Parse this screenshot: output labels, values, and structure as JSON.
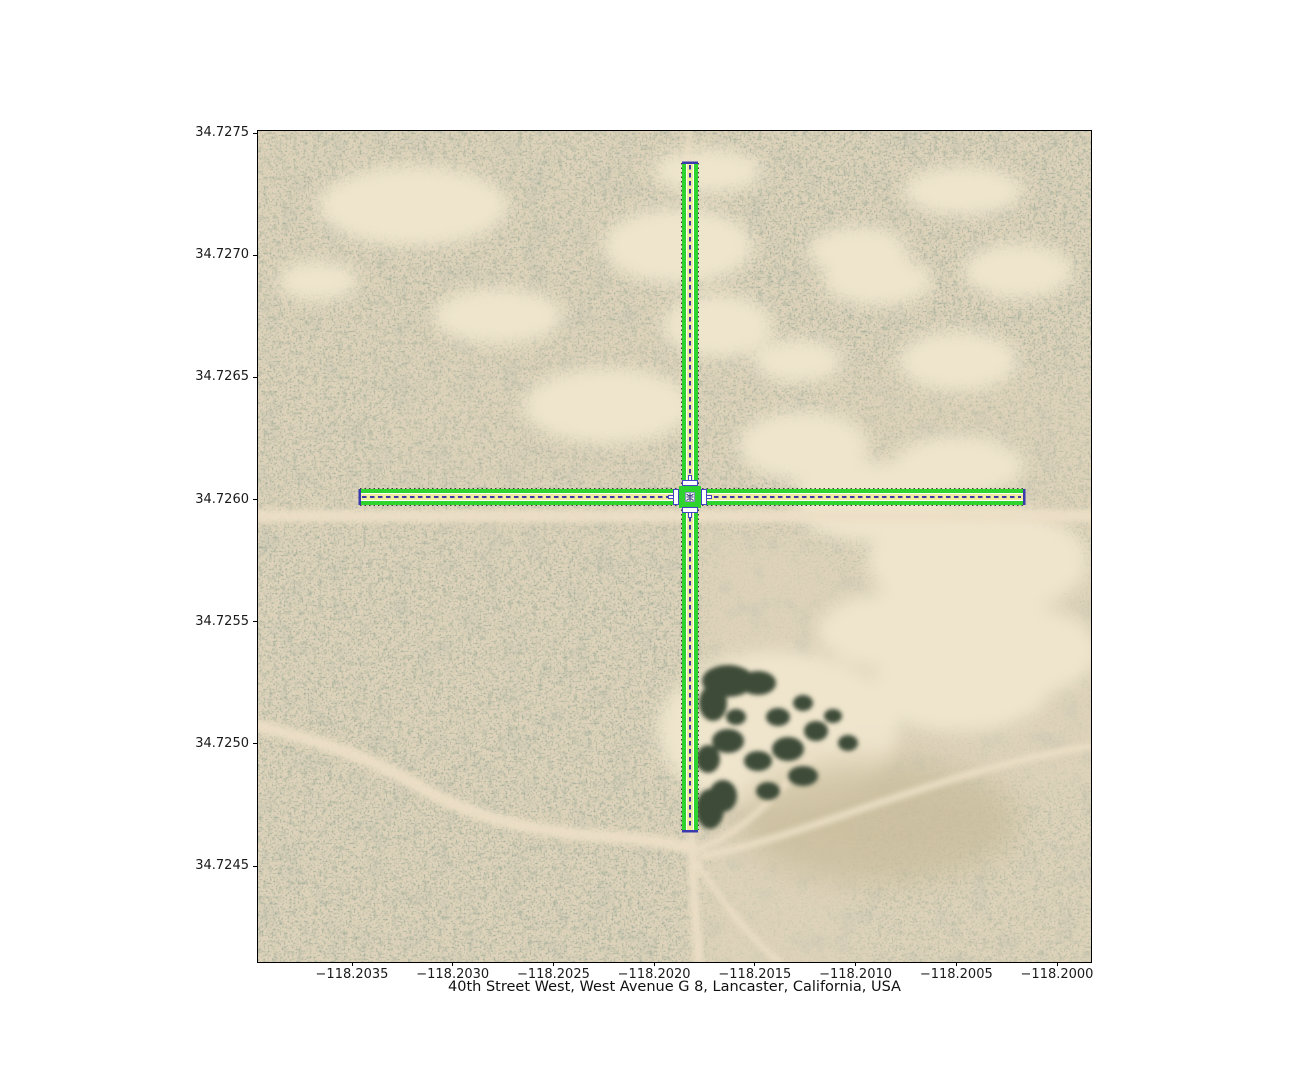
{
  "figure": {
    "xlabel": "40th Street West, West Avenue G 8, Lancaster, California, USA",
    "x_tick_labels": [
      "−118.2035",
      "−118.2030",
      "−118.2025",
      "−118.2020",
      "−118.2015",
      "−118.2010",
      "−118.2005",
      "−118.2000"
    ],
    "y_tick_labels": [
      "34.7275",
      "34.7270",
      "34.7265",
      "34.7260",
      "34.7255",
      "34.7250",
      "34.7245"
    ]
  },
  "map": {
    "kind": "satellite imagery with road-network overlay",
    "intersection_roads": [
      "40th Street West",
      "West Avenue G 8"
    ],
    "place": "Lancaster, California, USA",
    "colors": {
      "road_edge_green": "#2ed32e",
      "road_surface_yellow": "#f0eb9e",
      "lane_divider_blue": "#3a3aad",
      "stop_line_white": "#ffffff",
      "sand": "#ded3ba",
      "vegetation": "#56624d"
    }
  }
}
